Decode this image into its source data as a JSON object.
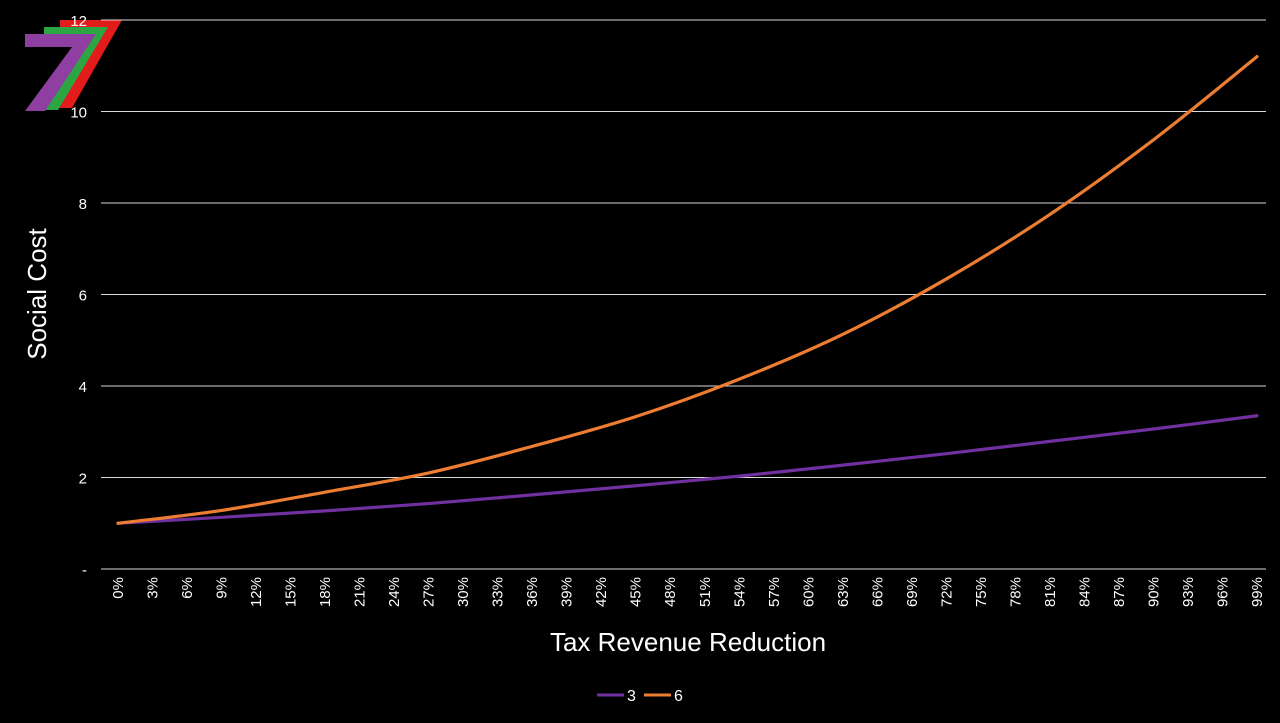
{
  "chart_data": {
    "type": "line",
    "xlabel": "Tax Revenue Reduction",
    "ylabel": "Social Cost",
    "x_tick_labels": [
      "0%",
      "3%",
      "6%",
      "9%",
      "12%",
      "15%",
      "18%",
      "21%",
      "24%",
      "27%",
      "30%",
      "33%",
      "36%",
      "39%",
      "42%",
      "45%",
      "48%",
      "51%",
      "54%",
      "57%",
      "60%",
      "63%",
      "66%",
      "69%",
      "72%",
      "75%",
      "78%",
      "81%",
      "84%",
      "87%",
      "90%",
      "93%",
      "96%",
      "99%"
    ],
    "x_range": [
      0,
      99
    ],
    "x_unit": "%",
    "y_ticks": [
      {
        "value": 0,
        "label": "-"
      },
      {
        "value": 2,
        "label": "2"
      },
      {
        "value": 4,
        "label": "4"
      },
      {
        "value": 6,
        "label": "6"
      },
      {
        "value": 8,
        "label": "8"
      },
      {
        "value": 10,
        "label": "10"
      },
      {
        "value": 12,
        "label": "12"
      }
    ],
    "ylim": [
      0,
      12
    ],
    "grid": true,
    "legend_position": "bottom-center",
    "series": [
      {
        "name": "3",
        "color": "#7030a0",
        "x": [
          0,
          9,
          18,
          27,
          36,
          45,
          54,
          63,
          72,
          81,
          90,
          99
        ],
        "values": [
          1.0,
          1.13,
          1.27,
          1.43,
          1.62,
          1.82,
          2.03,
          2.27,
          2.52,
          2.79,
          3.06,
          3.35
        ]
      },
      {
        "name": "6",
        "color": "#ed7d31",
        "x": [
          0,
          9,
          18,
          27,
          36,
          45,
          54,
          63,
          72,
          81,
          90,
          99
        ],
        "values": [
          1.0,
          1.28,
          1.68,
          2.1,
          2.68,
          3.33,
          4.15,
          5.13,
          6.34,
          7.75,
          9.38,
          11.2
        ]
      }
    ]
  },
  "logo": {
    "name": "logo-7-stripes",
    "colors": [
      "#e21b1b",
      "#2ca642",
      "#8e3fa1"
    ]
  }
}
